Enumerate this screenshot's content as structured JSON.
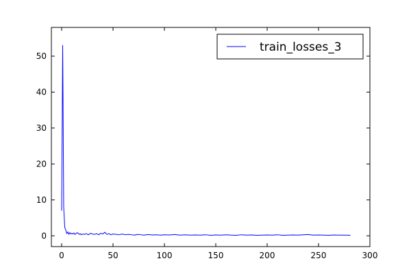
{
  "chart_data": {
    "type": "line",
    "title": "",
    "xlabel": "",
    "ylabel": "",
    "xlim": [
      -10,
      300
    ],
    "ylim": [
      -3,
      58
    ],
    "xticks": [
      0,
      50,
      100,
      150,
      200,
      250,
      300
    ],
    "yticks": [
      0,
      10,
      20,
      30,
      40,
      50
    ],
    "grid": false,
    "legend": {
      "position": "top-right"
    },
    "series": [
      {
        "name": "train_losses_3",
        "color": "#0000ff",
        "x": [
          0,
          1,
          2,
          3,
          4,
          5,
          6,
          7,
          8,
          9,
          10,
          11,
          12,
          13,
          14,
          15,
          16,
          17,
          18,
          19,
          20,
          22,
          24,
          26,
          28,
          30,
          32,
          34,
          36,
          38,
          40,
          42,
          44,
          46,
          48,
          50,
          53,
          56,
          59,
          62,
          65,
          68,
          71,
          74,
          77,
          80,
          84,
          88,
          92,
          96,
          100,
          105,
          110,
          115,
          120,
          125,
          130,
          135,
          140,
          145,
          150,
          155,
          160,
          165,
          170,
          175,
          180,
          185,
          190,
          195,
          200,
          205,
          210,
          215,
          220,
          225,
          230,
          235,
          240,
          245,
          250,
          255,
          260,
          265,
          270,
          275,
          281
        ],
        "y": [
          7.0,
          53.0,
          8.0,
          2.4,
          1.6,
          0.6,
          1.1,
          0.4,
          0.9,
          0.5,
          0.7,
          0.5,
          0.8,
          0.4,
          0.6,
          0.9,
          0.7,
          0.4,
          0.6,
          0.3,
          0.5,
          0.4,
          0.6,
          0.3,
          0.7,
          0.5,
          0.4,
          0.6,
          0.3,
          0.7,
          0.5,
          1.0,
          0.4,
          0.6,
          0.3,
          0.5,
          0.4,
          0.3,
          0.5,
          0.3,
          0.4,
          0.3,
          0.2,
          0.4,
          0.3,
          0.2,
          0.35,
          0.25,
          0.3,
          0.2,
          0.3,
          0.25,
          0.35,
          0.2,
          0.3,
          0.2,
          0.25,
          0.2,
          0.3,
          0.15,
          0.25,
          0.2,
          0.3,
          0.2,
          0.15,
          0.3,
          0.2,
          0.25,
          0.15,
          0.2,
          0.25,
          0.2,
          0.3,
          0.15,
          0.2,
          0.25,
          0.2,
          0.3,
          0.35,
          0.2,
          0.25,
          0.2,
          0.15,
          0.25,
          0.2,
          0.2,
          0.15
        ]
      }
    ]
  }
}
